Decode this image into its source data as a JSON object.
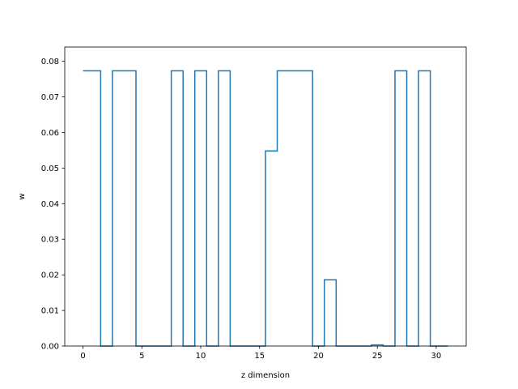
{
  "chart_data": {
    "type": "line",
    "drawstyle": "steps-mid",
    "title": "",
    "xlabel": "z dimension",
    "ylabel": "w",
    "xlim": [
      -1.55,
      32.55
    ],
    "ylim": [
      0.0,
      0.084
    ],
    "xticks": [
      0,
      5,
      10,
      15,
      20,
      25,
      30
    ],
    "yticks": [
      "0.00",
      "0.01",
      "0.02",
      "0.03",
      "0.04",
      "0.05",
      "0.06",
      "0.07",
      "0.08"
    ],
    "grid": false,
    "legend": "none",
    "color": "#1f77b4",
    "series": [
      {
        "x": [
          0,
          1,
          2,
          3,
          4,
          5,
          6,
          7,
          8,
          9,
          10,
          11,
          12,
          13,
          14,
          15,
          16,
          17,
          18,
          19,
          20,
          21,
          22,
          23,
          24,
          25,
          26,
          27,
          28,
          29,
          30,
          31
        ],
        "y": [
          0.0773,
          0.0773,
          0,
          0.0773,
          0.0773,
          0,
          0,
          0,
          0.0773,
          0,
          0.0773,
          0,
          0.0773,
          0,
          0,
          0,
          0.0548,
          0.0773,
          0.0773,
          0.0773,
          0,
          0.0186,
          0,
          0,
          0,
          0.0003,
          0,
          0.0773,
          0,
          0.0773,
          0,
          0
        ]
      }
    ]
  }
}
